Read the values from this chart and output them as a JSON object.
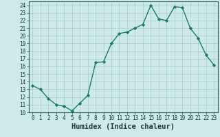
{
  "title": "",
  "xlabel": "Humidex (Indice chaleur)",
  "x_values": [
    0,
    1,
    2,
    3,
    4,
    5,
    6,
    7,
    8,
    9,
    10,
    11,
    12,
    13,
    14,
    15,
    16,
    17,
    18,
    19,
    20,
    21,
    22,
    23
  ],
  "y_values": [
    13.5,
    13.0,
    11.8,
    11.0,
    10.8,
    10.2,
    11.2,
    12.2,
    16.5,
    16.6,
    19.0,
    20.3,
    20.5,
    21.0,
    21.5,
    24.0,
    22.2,
    22.0,
    23.8,
    23.7,
    21.0,
    19.7,
    17.5,
    16.2
  ],
  "line_color": "#1a7a6e",
  "marker": "D",
  "marker_size": 2.2,
  "bg_color": "#ceeae8",
  "grid_color": "#a8ccc9",
  "ylim": [
    10,
    24.5
  ],
  "yticks": [
    10,
    11,
    12,
    13,
    14,
    15,
    16,
    17,
    18,
    19,
    20,
    21,
    22,
    23,
    24
  ],
  "xlim": [
    -0.5,
    23.5
  ],
  "xticks": [
    0,
    1,
    2,
    3,
    4,
    5,
    6,
    7,
    8,
    9,
    10,
    11,
    12,
    13,
    14,
    15,
    16,
    17,
    18,
    19,
    20,
    21,
    22,
    23
  ],
  "tick_label_size": 5.5,
  "xlabel_size": 7.5,
  "line_width": 1.0,
  "spine_color": "#2a6060"
}
